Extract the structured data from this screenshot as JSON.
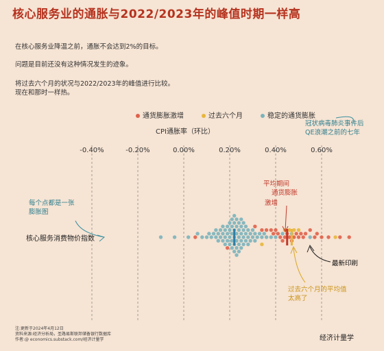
{
  "title": "核心服务业的通胀与2022/2023年的峰值时期一样高",
  "paragraphs": [
    "在核心服务业降温之前，通胀不会达到2%的目标。",
    "问题是目前还没有这种情况发生的迹象。",
    "将过去六个月的状况与2022/2023年的峰值进行比较。",
    "现在和那时一样热。"
  ],
  "legend": [
    {
      "label": "通货膨胀激增",
      "color": "#e0604a"
    },
    {
      "label": "过去六个月",
      "color": "#e8b63c"
    },
    {
      "label": "稳定的通货膨胀",
      "color": "#7bb3bd"
    }
  ],
  "annotations": {
    "covid": [
      "冠状病毒肺炎事件后",
      "QE浪潮之前的七年"
    ],
    "each_point": [
      "每个点都是一张",
      "膨胀图"
    ],
    "avg_surge": [
      "平均期间",
      "通货膨胀",
      "激增"
    ],
    "latest": "最新印刷",
    "past6": [
      "过去六个月的平均值",
      "太高了"
    ]
  },
  "footer": [
    "注:更新于2024年4月12日",
    "资料来源:经济分析局，圣路易斯联邦储备银行数据库",
    "作者:@ economics.substack.com/经济计量学"
  ],
  "brand": "经济计量学",
  "colors": {
    "surge": "#e0604a",
    "past6": "#e8b63c",
    "stable": "#7bb3bd",
    "title": "#b5331f",
    "mean_surge": "#c0392b",
    "mean_stable": "#2e7fa8"
  },
  "chart_data": {
    "type": "scatter",
    "subtype": "beeswarm",
    "xlabel": "CPI通胀率（环比）",
    "xlim": [
      -0.5,
      0.75
    ],
    "x_ticks": [
      "-0.40%",
      "-0.20%",
      "0.00%",
      "0.20%",
      "0.40%",
      "0.60%"
    ],
    "x_tick_values": [
      -0.4,
      -0.2,
      0.0,
      0.2,
      0.4,
      0.6
    ],
    "category": "核心服务消费物价指数",
    "grid": true,
    "series": [
      {
        "name": "稳定的通货膨胀",
        "mean": 0.22,
        "values": [
          -0.1,
          -0.04,
          0.02,
          0.06,
          0.08,
          0.1,
          0.11,
          0.12,
          0.13,
          0.14,
          0.14,
          0.15,
          0.15,
          0.16,
          0.16,
          0.17,
          0.17,
          0.17,
          0.18,
          0.18,
          0.18,
          0.19,
          0.19,
          0.19,
          0.2,
          0.2,
          0.2,
          0.2,
          0.21,
          0.21,
          0.21,
          0.21,
          0.21,
          0.22,
          0.22,
          0.22,
          0.22,
          0.22,
          0.22,
          0.23,
          0.23,
          0.23,
          0.23,
          0.23,
          0.23,
          0.24,
          0.24,
          0.24,
          0.24,
          0.24,
          0.25,
          0.25,
          0.25,
          0.25,
          0.25,
          0.26,
          0.26,
          0.26,
          0.26,
          0.27,
          0.27,
          0.27,
          0.28,
          0.28,
          0.28,
          0.29,
          0.29,
          0.3,
          0.3,
          0.31,
          0.31,
          0.32,
          0.33,
          0.34,
          0.35,
          0.36,
          0.38,
          0.4,
          0.43,
          0.47,
          0.55
        ]
      },
      {
        "name": "通货膨胀激增",
        "mean": 0.45,
        "values": [
          0.05,
          0.19,
          0.31,
          0.34,
          0.36,
          0.38,
          0.39,
          0.4,
          0.41,
          0.42,
          0.43,
          0.44,
          0.45,
          0.46,
          0.47,
          0.48,
          0.49,
          0.5,
          0.51,
          0.52,
          0.53,
          0.55,
          0.57,
          0.58,
          0.6,
          0.63,
          0.68,
          0.72
        ]
      },
      {
        "name": "过去六个月",
        "mean": 0.47,
        "values": [
          0.34,
          0.44,
          0.46,
          0.48,
          0.5,
          0.66
        ],
        "latest": 0.5
      }
    ]
  }
}
